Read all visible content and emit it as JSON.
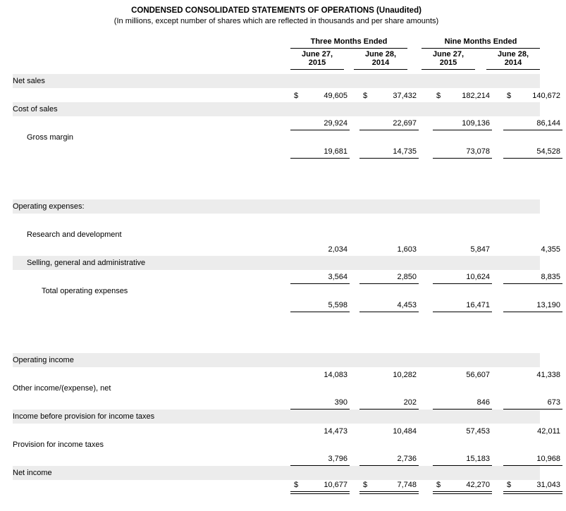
{
  "title": "CONDENSED CONSOLIDATED STATEMENTS OF OPERATIONS (Unaudited)",
  "subtitle": "(In millions, except number of shares which are reflected in thousands and per share amounts)",
  "dollar_sign": "$",
  "table": {
    "groups": [
      {
        "label": "Three Months Ended"
      },
      {
        "label": "Nine Months Ended"
      }
    ],
    "columns": [
      "June 27,\n2015",
      "June 28,\n2014",
      "June 27,\n2015",
      "June 28,\n2014"
    ],
    "rows": [
      {
        "label": "Net sales",
        "indent": 0,
        "shaded": true,
        "dollar": true,
        "underline": "none",
        "section_break_after": false,
        "values": [
          "49,605",
          "37,432",
          "182,214",
          "140,672"
        ]
      },
      {
        "label": "Cost of sales",
        "indent": 0,
        "shaded": true,
        "dollar": false,
        "underline": "single",
        "section_break_after": false,
        "values": [
          "29,924",
          "22,697",
          "109,136",
          "86,144"
        ]
      },
      {
        "label": "Gross margin",
        "indent": 1,
        "shaded": false,
        "dollar": false,
        "underline": "single",
        "section_break_after": true,
        "values": [
          "19,681",
          "14,735",
          "73,078",
          "54,528"
        ]
      },
      {
        "label": "Operating expenses:",
        "indent": 0,
        "shaded": true,
        "dollar": false,
        "underline": "none",
        "section_break_after": false,
        "values": [
          "",
          "",
          "",
          ""
        ]
      },
      {
        "label": "Research and development",
        "indent": 1,
        "shaded": false,
        "dollar": false,
        "underline": "none",
        "section_break_after": false,
        "values": [
          "2,034",
          "1,603",
          "5,847",
          "4,355"
        ]
      },
      {
        "label": "Selling, general and administrative",
        "indent": 1,
        "shaded": true,
        "dollar": false,
        "underline": "single",
        "section_break_after": false,
        "values": [
          "3,564",
          "2,850",
          "10,624",
          "8,835"
        ]
      },
      {
        "label": "Total operating expenses",
        "indent": 2,
        "shaded": false,
        "dollar": false,
        "underline": "single",
        "section_break_after": true,
        "values": [
          "5,598",
          "4,453",
          "16,471",
          "13,190"
        ]
      },
      {
        "label": "Operating income",
        "indent": 0,
        "shaded": true,
        "dollar": false,
        "underline": "none",
        "section_break_after": false,
        "values": [
          "14,083",
          "10,282",
          "56,607",
          "41,338"
        ]
      },
      {
        "label": "Other income/(expense), net",
        "indent": 0,
        "shaded": false,
        "dollar": false,
        "underline": "single",
        "section_break_after": false,
        "values": [
          "390",
          "202",
          "846",
          "673"
        ]
      },
      {
        "label": "Income before provision for income taxes",
        "indent": 0,
        "shaded": true,
        "dollar": false,
        "underline": "none",
        "section_break_after": false,
        "values": [
          "14,473",
          "10,484",
          "57,453",
          "42,011"
        ]
      },
      {
        "label": "Provision for income taxes",
        "indent": 0,
        "shaded": false,
        "dollar": false,
        "underline": "single",
        "section_break_after": false,
        "values": [
          "3,796",
          "2,736",
          "15,183",
          "10,968"
        ]
      },
      {
        "label": "Net income",
        "indent": 0,
        "shaded": true,
        "dollar": true,
        "underline": "double",
        "section_break_after": false,
        "values": [
          "10,677",
          "7,748",
          "42,270",
          "31,043"
        ]
      }
    ]
  }
}
